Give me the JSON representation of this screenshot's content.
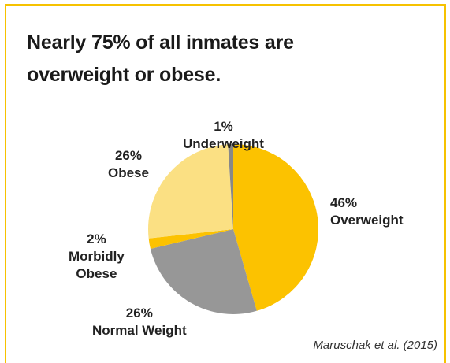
{
  "title_lines": [
    "Nearly 75% of all inmates are",
    "overweight or obese."
  ],
  "source": "Maruschak et al. (2015)",
  "chart_data": {
    "type": "pie",
    "title": "Nearly 75% of all inmates are overweight or obese.",
    "slices": [
      {
        "label": "Overweight",
        "value": 46,
        "pct_text": "46%",
        "color": "#fcc200"
      },
      {
        "label": "Normal Weight",
        "value": 26,
        "pct_text": "26%",
        "color": "#979797"
      },
      {
        "label": "Morbidly Obese",
        "value": 2,
        "pct_text": "2%",
        "color": "#fcc200"
      },
      {
        "label": "Obese",
        "value": 26,
        "pct_text": "26%",
        "color": "#fbe083"
      },
      {
        "label": "Underweight",
        "value": 1,
        "pct_text": "1%",
        "color": "#888888"
      }
    ],
    "legend": "none"
  },
  "labels": {
    "underweight": {
      "pct": "1%",
      "name": "Underweight"
    },
    "overweight": {
      "pct": "46%",
      "name": "Overweight"
    },
    "obese": {
      "pct": "26%",
      "name": "Obese"
    },
    "morbidly_obese": {
      "pct": "2%",
      "name_line1": "Morbidly",
      "name_line2": "Obese"
    },
    "normal": {
      "pct": "26%",
      "name": "Normal Weight"
    }
  }
}
